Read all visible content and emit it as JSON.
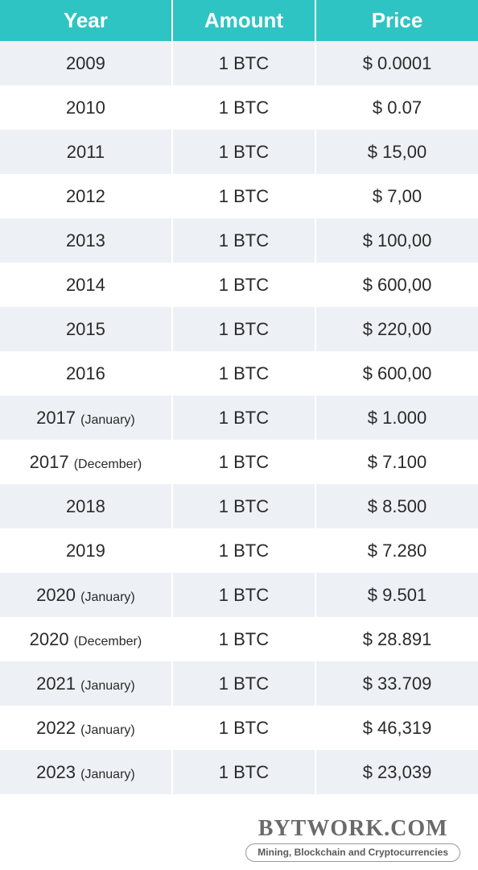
{
  "table": {
    "columns": [
      "Year",
      "Amount",
      "Price"
    ],
    "header_bg": "#2ec4c4",
    "header_text_color": "#ffffff",
    "row_bg_even": "#edf1f6",
    "row_bg_odd": "#ffffff",
    "text_color": "#2a2a2a",
    "rows": [
      {
        "year": "2009",
        "paren": "",
        "amount": "1 BTC",
        "price": "$ 0.0001"
      },
      {
        "year": "2010",
        "paren": "",
        "amount": "1 BTC",
        "price": "$ 0.07"
      },
      {
        "year": "2011",
        "paren": "",
        "amount": "1 BTC",
        "price": "$ 15,00"
      },
      {
        "year": "2012",
        "paren": "",
        "amount": "1 BTC",
        "price": "$ 7,00"
      },
      {
        "year": "2013",
        "paren": "",
        "amount": "1 BTC",
        "price": "$ 100,00"
      },
      {
        "year": "2014",
        "paren": "",
        "amount": "1 BTC",
        "price": "$ 600,00"
      },
      {
        "year": "2015",
        "paren": "",
        "amount": "1 BTC",
        "price": "$ 220,00"
      },
      {
        "year": "2016",
        "paren": "",
        "amount": "1 BTC",
        "price": "$ 600,00"
      },
      {
        "year": "2017",
        "paren": "(January)",
        "amount": "1 BTC",
        "price": "$ 1.000"
      },
      {
        "year": "2017",
        "paren": "(December)",
        "amount": "1 BTC",
        "price": "$ 7.100"
      },
      {
        "year": "2018",
        "paren": "",
        "amount": "1 BTC",
        "price": "$ 8.500"
      },
      {
        "year": "2019",
        "paren": "",
        "amount": "1 BTC",
        "price": "$ 7.280"
      },
      {
        "year": "2020",
        "paren": "(January)",
        "amount": "1 BTC",
        "price": "$ 9.501"
      },
      {
        "year": "2020",
        "paren": "(December)",
        "amount": "1 BTC",
        "price": "$ 28.891"
      },
      {
        "year": "2021",
        "paren": "(January)",
        "amount": "1 BTC",
        "price": "$ 33.709"
      },
      {
        "year": "2022",
        "paren": "(January)",
        "amount": "1 BTC",
        "price": "$ 46,319"
      },
      {
        "year": "2023",
        "paren": "(January)",
        "amount": "1 BTC",
        "price": "$ 23,039"
      }
    ]
  },
  "footer": {
    "title": "BYTWORK.COM",
    "subtitle": "Mining, Blockchain and Cryptocurrencies"
  }
}
